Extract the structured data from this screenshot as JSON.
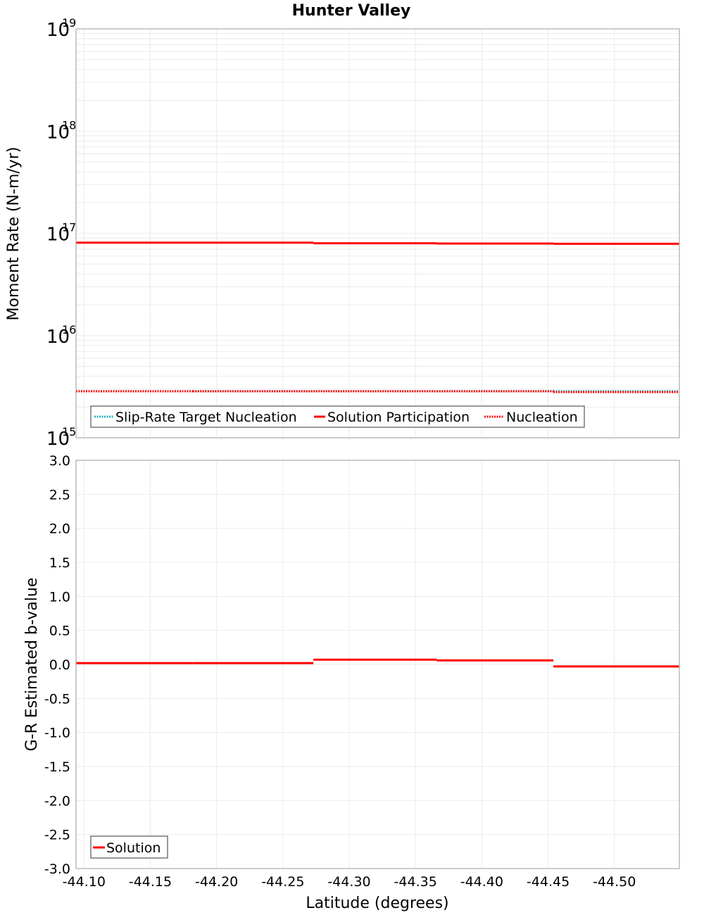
{
  "chart_data": [
    {
      "type": "line",
      "title": "Hunter Valley",
      "xlabel": "",
      "ylabel": "Moment Rate (N-m/yr)",
      "yscale": "log",
      "ylim": [
        1000000000000000.0,
        1e+19
      ],
      "xlim": [
        -44.094,
        -44.549
      ],
      "y_ticks": [
        {
          "base": "10",
          "exp": "19",
          "value": 1e+19
        },
        {
          "base": "10",
          "exp": "18",
          "value": 1e+18
        },
        {
          "base": "10",
          "exp": "17",
          "value": 1e+17
        },
        {
          "base": "10",
          "exp": "16",
          "value": 1e+16
        },
        {
          "base": "10",
          "exp": "15",
          "value": 1000000000000000.0
        }
      ],
      "grid": true,
      "legend_position": "lower-left",
      "series": [
        {
          "name": "Slip-Rate Target Nucleation",
          "style": "dotted",
          "color": "#1fb5c4",
          "segments": [
            {
              "x0": -44.094,
              "x1": -44.182,
              "y": 2850000000000000.0
            },
            {
              "x0": -44.182,
              "x1": -44.273,
              "y": 2850000000000000.0
            },
            {
              "x0": -44.273,
              "x1": -44.366,
              "y": 2850000000000000.0
            },
            {
              "x0": -44.366,
              "x1": -44.454,
              "y": 2850000000000000.0
            },
            {
              "x0": -44.454,
              "x1": -44.549,
              "y": 2850000000000000.0
            }
          ]
        },
        {
          "name": "Solution Participation",
          "style": "solid",
          "color": "#ff0000",
          "segments": [
            {
              "x0": -44.094,
              "x1": -44.182,
              "y": 8.1e+16
            },
            {
              "x0": -44.182,
              "x1": -44.273,
              "y": 8.1e+16
            },
            {
              "x0": -44.273,
              "x1": -44.366,
              "y": 8e+16
            },
            {
              "x0": -44.366,
              "x1": -44.454,
              "y": 7.95e+16
            },
            {
              "x0": -44.454,
              "x1": -44.549,
              "y": 7.9e+16
            }
          ]
        },
        {
          "name": "Nucleation",
          "style": "dotted",
          "color": "#ff0000",
          "segments": [
            {
              "x0": -44.094,
              "x1": -44.182,
              "y": 2850000000000000.0
            },
            {
              "x0": -44.182,
              "x1": -44.273,
              "y": 2850000000000000.0
            },
            {
              "x0": -44.273,
              "x1": -44.366,
              "y": 2850000000000000.0
            },
            {
              "x0": -44.366,
              "x1": -44.454,
              "y": 2850000000000000.0
            },
            {
              "x0": -44.454,
              "x1": -44.549,
              "y": 2800000000000000.0
            }
          ]
        }
      ]
    },
    {
      "type": "line",
      "title": "",
      "xlabel": "Latitude (degrees)",
      "ylabel": "G-R Estimated b-value",
      "ylim": [
        -3.0,
        3.0
      ],
      "xlim": [
        -44.094,
        -44.549
      ],
      "x_ticks": [
        "-44.10",
        "-44.15",
        "-44.20",
        "-44.25",
        "-44.30",
        "-44.35",
        "-44.40",
        "-44.45",
        "-44.50"
      ],
      "y_ticks": [
        "3.0",
        "2.5",
        "2.0",
        "1.5",
        "1.0",
        "0.5",
        "0.0",
        "-0.5",
        "-1.0",
        "-1.5",
        "-2.0",
        "-2.5",
        "-3.0"
      ],
      "grid": true,
      "legend_position": "lower-left",
      "series": [
        {
          "name": "Solution",
          "style": "solid",
          "color": "#ff0000",
          "segments": [
            {
              "x0": -44.094,
              "x1": -44.182,
              "y": 0.02
            },
            {
              "x0": -44.182,
              "x1": -44.273,
              "y": 0.02
            },
            {
              "x0": -44.273,
              "x1": -44.366,
              "y": 0.07
            },
            {
              "x0": -44.366,
              "x1": -44.454,
              "y": 0.06
            },
            {
              "x0": -44.454,
              "x1": -44.549,
              "y": -0.03
            }
          ]
        }
      ]
    }
  ],
  "figure": {
    "title": "Hunter Valley",
    "top_ylabel": "Moment Rate (N-m/yr)",
    "bottom_ylabel": "G-R Estimated b-value",
    "xlabel": "Latitude (degrees)",
    "top_legend": [
      "Slip-Rate Target Nucleation",
      "Solution Participation",
      "Nucleation"
    ],
    "bottom_legend": [
      "Solution"
    ],
    "colors": {
      "red": "#ff0000",
      "cyan": "#1fb5c4",
      "grid": "#ebebeb",
      "frame": "#aaaaaa"
    }
  }
}
